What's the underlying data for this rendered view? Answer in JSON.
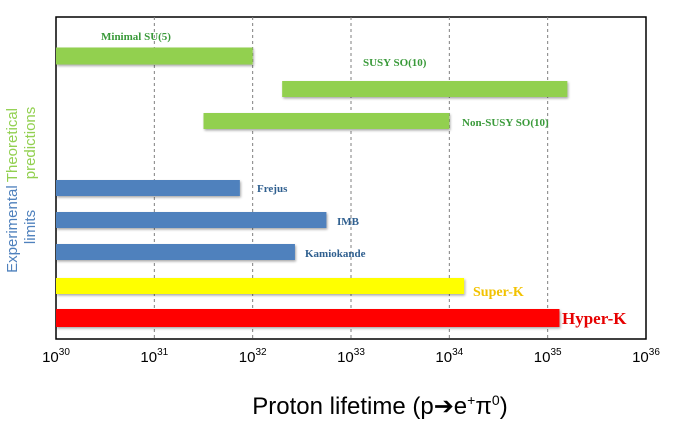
{
  "chart_data": {
    "type": "bar",
    "orientation": "horizontal",
    "xscale": "log",
    "xlim": [
      30,
      36
    ],
    "x_ticks": [
      {
        "base": "10",
        "exp": "30"
      },
      {
        "base": "10",
        "exp": "31"
      },
      {
        "base": "10",
        "exp": "32"
      },
      {
        "base": "10",
        "exp": "33"
      },
      {
        "base": "10",
        "exp": "34"
      },
      {
        "base": "10",
        "exp": "35"
      },
      {
        "base": "10",
        "exp": "36"
      }
    ],
    "xlabel": {
      "prefix": "Proton lifetime (p",
      "arrow": "➔",
      "e": "e",
      "plus": "+",
      "pi": "π",
      "zero": "0",
      "suffix": ")"
    },
    "grid": "vertical dashed lines",
    "groups": [
      {
        "label_line1": "Theoretical",
        "label_line2": "predictions",
        "color": "#92d050"
      },
      {
        "label_line1": "Experimental",
        "label_line2": "limits",
        "color": "#4f81bd"
      }
    ],
    "bars": [
      {
        "label": "Minimal SU(5)",
        "start": 30.0,
        "end": 32.0,
        "color": "#92d050",
        "label_color": "#3a9a3a"
      },
      {
        "label": "SUSY SO(10)",
        "start": 32.3,
        "end": 35.2,
        "color": "#92d050",
        "label_color": "#3a9a3a"
      },
      {
        "label": "Non-SUSY SO(10)",
        "start": 31.5,
        "end": 34.0,
        "color": "#92d050",
        "label_color": "#3a9a3a"
      },
      {
        "label": "Frejus",
        "start": 30.0,
        "end": 31.87,
        "color": "#4f81bd",
        "label_color": "#2f5f8f"
      },
      {
        "label": "IMB",
        "start": 30.0,
        "end": 32.75,
        "color": "#4f81bd",
        "label_color": "#2f5f8f"
      },
      {
        "label": "Kamiokande",
        "start": 30.0,
        "end": 32.43,
        "color": "#4f81bd",
        "label_color": "#2f5f8f"
      },
      {
        "label": "Super-K",
        "start": 30.0,
        "end": 34.15,
        "color": "#ffff00",
        "label_color": "#f2c200"
      },
      {
        "label": "Hyper-K",
        "start": 30.0,
        "end": 35.12,
        "color": "#ff0000",
        "label_color": "#e60000"
      }
    ]
  }
}
